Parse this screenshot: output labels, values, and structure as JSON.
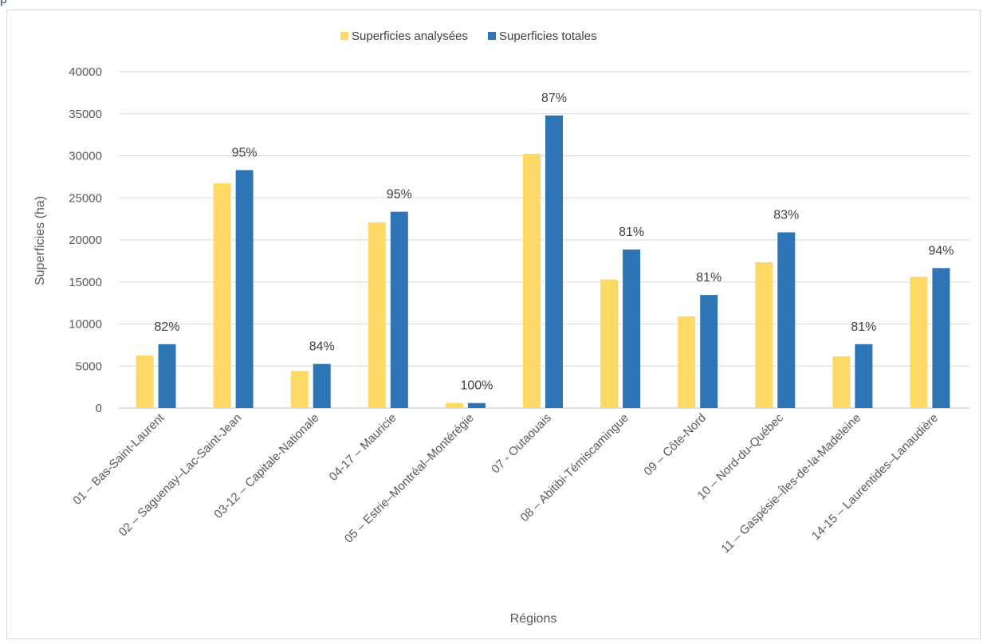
{
  "top_caption": "p",
  "chart_data": {
    "type": "bar",
    "title": "",
    "xlabel": "Régions",
    "ylabel": "Superficies (ha)",
    "ylim": [
      0,
      40000
    ],
    "yticks": [
      0,
      5000,
      10000,
      15000,
      20000,
      25000,
      30000,
      35000,
      40000
    ],
    "grid": true,
    "legend_position": "top",
    "categories": [
      "01 – Bas-Saint-Laurent",
      "02 – Saguenay–Lac-Saint-Jean",
      "03-12 – Capitale-Nationale",
      "04-17 – Mauricie",
      "05 – Estrie–Montréal–Montérégie",
      "07 - Outaouais",
      "08 – Abitibi-Témiscamingue",
      "09 – Côte-Nord",
      "10 – Nord-du-Québec",
      "11 – Gaspésie–Îles-de-la-Madeleine",
      "14-15 – Laurentides–Lanaudière"
    ],
    "series": [
      {
        "name": "Superficies analysées",
        "color": "#ffd966",
        "values": [
          6250,
          26750,
          4400,
          22100,
          600,
          30250,
          15300,
          10900,
          17350,
          6150,
          15600
        ]
      },
      {
        "name": "Superficies totales",
        "color": "#2e75b6",
        "values": [
          7600,
          28300,
          5250,
          23350,
          600,
          34800,
          18850,
          13450,
          20900,
          7600,
          16650
        ]
      }
    ],
    "data_labels": [
      "82%",
      "95%",
      "84%",
      "95%",
      "100%",
      "87%",
      "81%",
      "81%",
      "83%",
      "81%",
      "94%"
    ]
  }
}
